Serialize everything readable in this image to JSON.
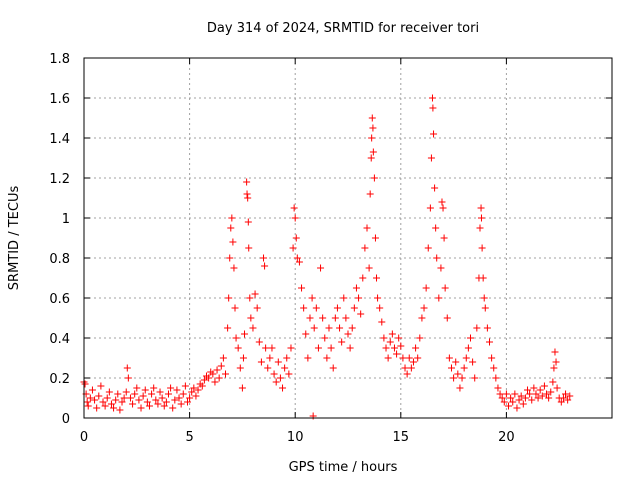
{
  "chart_data": {
    "type": "scatter",
    "title": "Day 314 of 2024, SRMTID for receiver tori",
    "xlabel": "GPS time / hours",
    "ylabel": "SRMTID / TECUs",
    "xlim": [
      0,
      25
    ],
    "ylim": [
      0,
      1.8
    ],
    "x_ticks": [
      0,
      5,
      10,
      15,
      20
    ],
    "x_tick_labels": [
      "0",
      "5",
      "10",
      "15",
      "20"
    ],
    "y_ticks": [
      0,
      0.2,
      0.4,
      0.6,
      0.8,
      1,
      1.2,
      1.4,
      1.6,
      1.8
    ],
    "y_tick_labels": [
      "0",
      "0.2",
      "0.4",
      "0.6",
      "0.8",
      "1",
      "1.2",
      "1.4",
      "1.6",
      "1.8"
    ],
    "grid": true,
    "marker": "+",
    "color": "#ff0000",
    "series": [
      {
        "name": "SRMTID",
        "points": [
          [
            0.0,
            0.18
          ],
          [
            0.05,
            0.17
          ],
          [
            0.1,
            0.12
          ],
          [
            0.15,
            0.08
          ],
          [
            0.2,
            0.06
          ],
          [
            0.3,
            0.1
          ],
          [
            0.4,
            0.14
          ],
          [
            0.5,
            0.09
          ],
          [
            0.6,
            0.05
          ],
          [
            0.7,
            0.11
          ],
          [
            0.8,
            0.16
          ],
          [
            0.9,
            0.08
          ],
          [
            1.0,
            0.06
          ],
          [
            1.1,
            0.1
          ],
          [
            1.2,
            0.13
          ],
          [
            1.3,
            0.07
          ],
          [
            1.4,
            0.05
          ],
          [
            1.5,
            0.09
          ],
          [
            1.6,
            0.12
          ],
          [
            1.7,
            0.04
          ],
          [
            1.8,
            0.08
          ],
          [
            1.9,
            0.1
          ],
          [
            2.0,
            0.13
          ],
          [
            2.05,
            0.25
          ],
          [
            2.1,
            0.2
          ],
          [
            2.2,
            0.1
          ],
          [
            2.3,
            0.07
          ],
          [
            2.4,
            0.12
          ],
          [
            2.5,
            0.15
          ],
          [
            2.6,
            0.09
          ],
          [
            2.7,
            0.05
          ],
          [
            2.8,
            0.11
          ],
          [
            2.9,
            0.14
          ],
          [
            3.0,
            0.08
          ],
          [
            3.1,
            0.06
          ],
          [
            3.2,
            0.12
          ],
          [
            3.3,
            0.15
          ],
          [
            3.4,
            0.09
          ],
          [
            3.5,
            0.07
          ],
          [
            3.6,
            0.13
          ],
          [
            3.7,
            0.1
          ],
          [
            3.8,
            0.06
          ],
          [
            3.9,
            0.08
          ],
          [
            4.0,
            0.12
          ],
          [
            4.1,
            0.15
          ],
          [
            4.2,
            0.05
          ],
          [
            4.3,
            0.09
          ],
          [
            4.4,
            0.14
          ],
          [
            4.5,
            0.1
          ],
          [
            4.6,
            0.07
          ],
          [
            4.7,
            0.12
          ],
          [
            4.8,
            0.16
          ],
          [
            4.9,
            0.08
          ],
          [
            5.0,
            0.1
          ],
          [
            5.1,
            0.13
          ],
          [
            5.2,
            0.15
          ],
          [
            5.3,
            0.11
          ],
          [
            5.4,
            0.14
          ],
          [
            5.5,
            0.17
          ],
          [
            5.6,
            0.16
          ],
          [
            5.7,
            0.19
          ],
          [
            5.8,
            0.21
          ],
          [
            5.9,
            0.2
          ],
          [
            6.0,
            0.23
          ],
          [
            6.1,
            0.22
          ],
          [
            6.2,
            0.18
          ],
          [
            6.3,
            0.24
          ],
          [
            6.4,
            0.2
          ],
          [
            6.5,
            0.26
          ],
          [
            6.6,
            0.3
          ],
          [
            6.7,
            0.22
          ],
          [
            6.8,
            0.45
          ],
          [
            6.85,
            0.6
          ],
          [
            6.9,
            0.8
          ],
          [
            6.95,
            0.95
          ],
          [
            7.0,
            1.0
          ],
          [
            7.05,
            0.88
          ],
          [
            7.1,
            0.75
          ],
          [
            7.15,
            0.55
          ],
          [
            7.2,
            0.4
          ],
          [
            7.3,
            0.35
          ],
          [
            7.4,
            0.25
          ],
          [
            7.5,
            0.15
          ],
          [
            7.55,
            0.3
          ],
          [
            7.6,
            0.42
          ],
          [
            7.7,
            1.18
          ],
          [
            7.72,
            1.12
          ],
          [
            7.75,
            1.1
          ],
          [
            7.78,
            0.98
          ],
          [
            7.8,
            0.85
          ],
          [
            7.85,
            0.6
          ],
          [
            7.9,
            0.5
          ],
          [
            8.0,
            0.45
          ],
          [
            8.1,
            0.62
          ],
          [
            8.2,
            0.55
          ],
          [
            8.3,
            0.38
          ],
          [
            8.4,
            0.28
          ],
          [
            8.5,
            0.8
          ],
          [
            8.55,
            0.76
          ],
          [
            8.6,
            0.35
          ],
          [
            8.7,
            0.25
          ],
          [
            8.8,
            0.3
          ],
          [
            8.9,
            0.35
          ],
          [
            9.0,
            0.22
          ],
          [
            9.1,
            0.18
          ],
          [
            9.2,
            0.28
          ],
          [
            9.3,
            0.2
          ],
          [
            9.4,
            0.15
          ],
          [
            9.5,
            0.25
          ],
          [
            9.6,
            0.3
          ],
          [
            9.7,
            0.22
          ],
          [
            9.8,
            0.35
          ],
          [
            9.9,
            0.85
          ],
          [
            9.95,
            1.05
          ],
          [
            10.0,
            1.0
          ],
          [
            10.05,
            0.9
          ],
          [
            10.1,
            0.8
          ],
          [
            10.2,
            0.78
          ],
          [
            10.3,
            0.65
          ],
          [
            10.4,
            0.55
          ],
          [
            10.5,
            0.42
          ],
          [
            10.6,
            0.3
          ],
          [
            10.7,
            0.5
          ],
          [
            10.8,
            0.6
          ],
          [
            10.85,
            0.01
          ],
          [
            10.9,
            0.45
          ],
          [
            11.0,
            0.55
          ],
          [
            11.1,
            0.35
          ],
          [
            11.2,
            0.75
          ],
          [
            11.3,
            0.5
          ],
          [
            11.4,
            0.4
          ],
          [
            11.5,
            0.3
          ],
          [
            11.6,
            0.45
          ],
          [
            11.7,
            0.35
          ],
          [
            11.8,
            0.25
          ],
          [
            11.9,
            0.5
          ],
          [
            12.0,
            0.55
          ],
          [
            12.1,
            0.45
          ],
          [
            12.2,
            0.38
          ],
          [
            12.3,
            0.6
          ],
          [
            12.4,
            0.5
          ],
          [
            12.5,
            0.42
          ],
          [
            12.6,
            0.35
          ],
          [
            12.7,
            0.45
          ],
          [
            12.8,
            0.55
          ],
          [
            12.9,
            0.65
          ],
          [
            13.0,
            0.6
          ],
          [
            13.1,
            0.52
          ],
          [
            13.2,
            0.7
          ],
          [
            13.3,
            0.85
          ],
          [
            13.4,
            0.95
          ],
          [
            13.5,
            0.75
          ],
          [
            13.55,
            1.12
          ],
          [
            13.6,
            1.3
          ],
          [
            13.62,
            1.4
          ],
          [
            13.65,
            1.5
          ],
          [
            13.68,
            1.45
          ],
          [
            13.7,
            1.33
          ],
          [
            13.75,
            1.2
          ],
          [
            13.8,
            0.9
          ],
          [
            13.85,
            0.7
          ],
          [
            13.9,
            0.6
          ],
          [
            14.0,
            0.55
          ],
          [
            14.1,
            0.48
          ],
          [
            14.2,
            0.4
          ],
          [
            14.3,
            0.35
          ],
          [
            14.4,
            0.3
          ],
          [
            14.5,
            0.38
          ],
          [
            14.6,
            0.42
          ],
          [
            14.7,
            0.35
          ],
          [
            14.8,
            0.32
          ],
          [
            14.9,
            0.4
          ],
          [
            15.0,
            0.36
          ],
          [
            15.1,
            0.3
          ],
          [
            15.2,
            0.25
          ],
          [
            15.3,
            0.22
          ],
          [
            15.4,
            0.3
          ],
          [
            15.5,
            0.25
          ],
          [
            15.6,
            0.28
          ],
          [
            15.7,
            0.35
          ],
          [
            15.8,
            0.3
          ],
          [
            15.9,
            0.4
          ],
          [
            16.0,
            0.5
          ],
          [
            16.1,
            0.55
          ],
          [
            16.2,
            0.65
          ],
          [
            16.3,
            0.85
          ],
          [
            16.4,
            1.05
          ],
          [
            16.45,
            1.3
          ],
          [
            16.5,
            1.6
          ],
          [
            16.52,
            1.55
          ],
          [
            16.55,
            1.42
          ],
          [
            16.6,
            1.15
          ],
          [
            16.65,
            0.95
          ],
          [
            16.7,
            0.8
          ],
          [
            16.8,
            0.6
          ],
          [
            16.9,
            0.75
          ],
          [
            16.95,
            1.08
          ],
          [
            17.0,
            1.05
          ],
          [
            17.05,
            0.9
          ],
          [
            17.1,
            0.65
          ],
          [
            17.2,
            0.5
          ],
          [
            17.3,
            0.3
          ],
          [
            17.4,
            0.25
          ],
          [
            17.5,
            0.2
          ],
          [
            17.6,
            0.28
          ],
          [
            17.7,
            0.22
          ],
          [
            17.8,
            0.15
          ],
          [
            17.9,
            0.2
          ],
          [
            18.0,
            0.25
          ],
          [
            18.1,
            0.3
          ],
          [
            18.2,
            0.35
          ],
          [
            18.3,
            0.4
          ],
          [
            18.4,
            0.28
          ],
          [
            18.5,
            0.2
          ],
          [
            18.6,
            0.45
          ],
          [
            18.7,
            0.7
          ],
          [
            18.75,
            0.95
          ],
          [
            18.8,
            1.05
          ],
          [
            18.82,
            1.0
          ],
          [
            18.85,
            0.85
          ],
          [
            18.9,
            0.7
          ],
          [
            18.95,
            0.6
          ],
          [
            19.0,
            0.55
          ],
          [
            19.1,
            0.45
          ],
          [
            19.2,
            0.38
          ],
          [
            19.3,
            0.3
          ],
          [
            19.4,
            0.25
          ],
          [
            19.5,
            0.2
          ],
          [
            19.6,
            0.15
          ],
          [
            19.7,
            0.12
          ],
          [
            19.8,
            0.1
          ],
          [
            19.9,
            0.08
          ],
          [
            20.0,
            0.12
          ],
          [
            20.1,
            0.06
          ],
          [
            20.2,
            0.1
          ],
          [
            20.3,
            0.08
          ],
          [
            20.4,
            0.12
          ],
          [
            20.5,
            0.05
          ],
          [
            20.6,
            0.09
          ],
          [
            20.7,
            0.11
          ],
          [
            20.8,
            0.07
          ],
          [
            20.9,
            0.1
          ],
          [
            21.0,
            0.14
          ],
          [
            21.1,
            0.12
          ],
          [
            21.2,
            0.09
          ],
          [
            21.3,
            0.15
          ],
          [
            21.4,
            0.12
          ],
          [
            21.5,
            0.1
          ],
          [
            21.6,
            0.14
          ],
          [
            21.7,
            0.11
          ],
          [
            21.8,
            0.16
          ],
          [
            21.9,
            0.12
          ],
          [
            22.0,
            0.1
          ],
          [
            22.1,
            0.13
          ],
          [
            22.2,
            0.18
          ],
          [
            22.25,
            0.25
          ],
          [
            22.3,
            0.33
          ],
          [
            22.35,
            0.28
          ],
          [
            22.4,
            0.15
          ],
          [
            22.5,
            0.1
          ],
          [
            22.6,
            0.08
          ],
          [
            22.7,
            0.1
          ],
          [
            22.8,
            0.12
          ],
          [
            22.9,
            0.09
          ],
          [
            23.0,
            0.11
          ]
        ]
      }
    ]
  }
}
